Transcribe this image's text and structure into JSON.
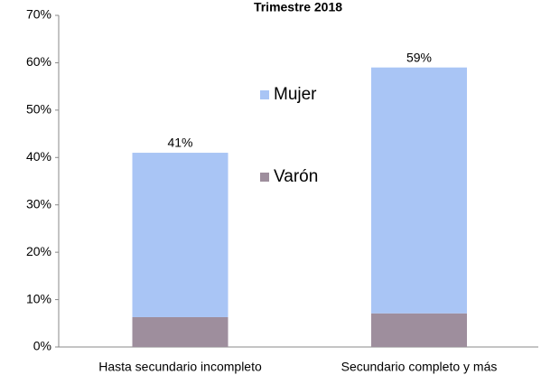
{
  "chart_data": {
    "type": "stacked_bar",
    "title": "Trimestre 2018",
    "categories": [
      "Hasta secundario incompleto",
      "Secundario completo y más"
    ],
    "series": [
      {
        "name": "Varón",
        "color": "#9e8e9d",
        "values": [
          6.3,
          7.1
        ]
      },
      {
        "name": "Mujer",
        "color": "#a9c5f5",
        "values": [
          34.7,
          51.9
        ]
      }
    ],
    "totals": [
      41,
      59
    ],
    "total_labels": [
      "41%",
      "59%"
    ],
    "ylim": [
      0,
      70
    ],
    "yticks": [
      {
        "value": 0,
        "label": "0%"
      },
      {
        "value": 10,
        "label": "10%"
      },
      {
        "value": 20,
        "label": "20%"
      },
      {
        "value": 30,
        "label": "30%"
      },
      {
        "value": 40,
        "label": "40%"
      },
      {
        "value": 50,
        "label": "50%"
      },
      {
        "value": 60,
        "label": "60%"
      },
      {
        "value": 70,
        "label": "70%"
      }
    ],
    "grid": false
  }
}
